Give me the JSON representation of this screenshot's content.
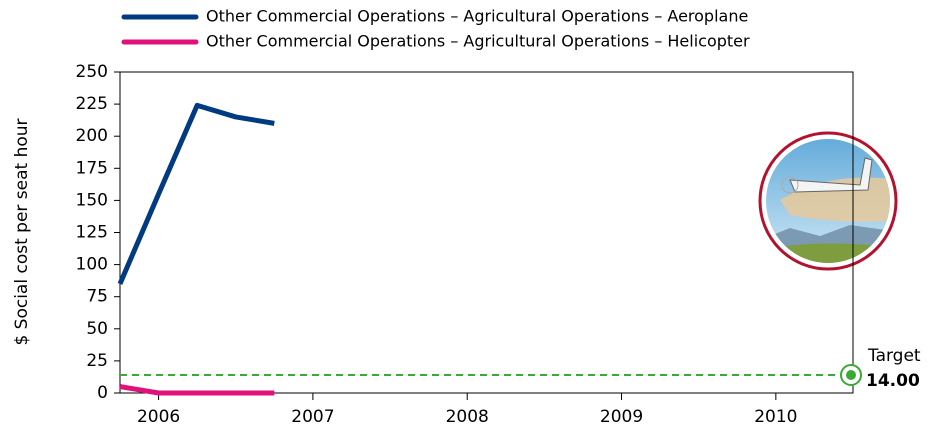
{
  "chart_data": {
    "type": "line",
    "y_label": "$ Social cost per seat hour",
    "x": [
      2005.75,
      2006,
      2006.25,
      2006.5,
      2006.75
    ],
    "series": [
      {
        "name": "Other Commercial Operations – Agricultural Operations – Aeroplane",
        "color": "#003a80",
        "values": [
          85,
          155,
          224,
          215,
          210
        ]
      },
      {
        "name": "Other Commercial Operations – Agricultural Operations – Helicopter",
        "color": "#e0127a",
        "values": [
          5,
          0,
          0,
          0,
          0
        ]
      }
    ],
    "xlim": [
      2005.75,
      2010.5
    ],
    "xticks": [
      2006,
      2007,
      2008,
      2009,
      2010
    ],
    "ylim": [
      0,
      250
    ],
    "yticks": [
      0,
      25,
      50,
      75,
      100,
      125,
      150,
      175,
      200,
      225,
      250
    ],
    "target": {
      "label": "Target",
      "value": 14,
      "value_label": "14.00",
      "color": "#3aaa35"
    }
  }
}
